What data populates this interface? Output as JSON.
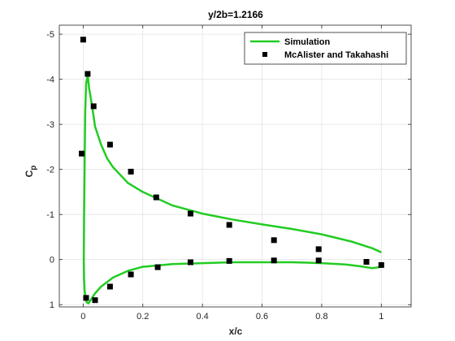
{
  "chart_data": {
    "type": "line",
    "title": "y/2b=1.2166",
    "xlabel": "x/c",
    "ylabel": "C",
    "ylabel_sub": "p",
    "xlim": [
      -0.08,
      1.1
    ],
    "ylim": [
      -5.2,
      1.05
    ],
    "y_reversed": true,
    "grid": true,
    "legend_position": "top-right",
    "xticks": [
      0,
      0.2,
      0.4,
      0.6,
      0.8,
      1
    ],
    "xtick_labels": [
      "0",
      "0.2",
      "0.4",
      "0.6",
      "0.8",
      "1"
    ],
    "yticks": [
      -5,
      -4,
      -3,
      -2,
      -1,
      0,
      1
    ],
    "ytick_labels": [
      "-5",
      "-4",
      "-3",
      "-2",
      "-1",
      "0",
      "1"
    ],
    "colors": {
      "simulation": "#22cc22",
      "experiment": "#000000"
    },
    "series": [
      {
        "name": "Simulation",
        "kind": "line",
        "x": [
          1.0,
          0.97,
          0.9,
          0.8,
          0.7,
          0.6,
          0.5,
          0.4,
          0.3,
          0.2,
          0.15,
          0.1,
          0.08,
          0.06,
          0.04,
          0.03,
          0.02,
          0.015,
          0.01,
          0.007,
          0.005,
          0.003,
          0.002,
          0.003,
          0.005,
          0.008,
          0.012,
          0.018,
          0.025,
          0.04,
          0.06,
          0.1,
          0.15,
          0.2,
          0.3,
          0.4,
          0.5,
          0.6,
          0.7,
          0.8,
          0.88,
          0.93,
          0.97,
          1.0
        ],
        "y": [
          -0.16,
          -0.25,
          -0.4,
          -0.56,
          -0.68,
          -0.78,
          -0.89,
          -1.02,
          -1.2,
          -1.5,
          -1.7,
          -2.05,
          -2.25,
          -2.55,
          -2.95,
          -3.4,
          -3.8,
          -4.1,
          -3.9,
          -3.3,
          -2.2,
          -0.9,
          0.0,
          0.45,
          0.7,
          0.85,
          0.95,
          0.97,
          0.9,
          0.75,
          0.6,
          0.4,
          0.25,
          0.16,
          0.1,
          0.08,
          0.06,
          0.06,
          0.06,
          0.08,
          0.11,
          0.15,
          0.19,
          0.16
        ]
      },
      {
        "name": "McAlister and Takahashi",
        "kind": "scatter",
        "x": [
          0.0,
          0.015,
          0.035,
          0.09,
          0.16,
          0.245,
          0.36,
          0.49,
          0.64,
          0.79,
          0.95,
          1.0,
          -0.005,
          0.01,
          0.04,
          0.09,
          0.16,
          0.25,
          0.36,
          0.49,
          0.64,
          0.79
        ],
        "y": [
          -4.88,
          -4.12,
          -3.4,
          -2.55,
          -1.95,
          -1.38,
          -1.02,
          -0.77,
          -0.43,
          -0.23,
          0.05,
          0.12,
          -2.35,
          0.85,
          0.9,
          0.6,
          0.33,
          0.17,
          0.06,
          0.03,
          0.02,
          0.02
        ]
      }
    ]
  }
}
